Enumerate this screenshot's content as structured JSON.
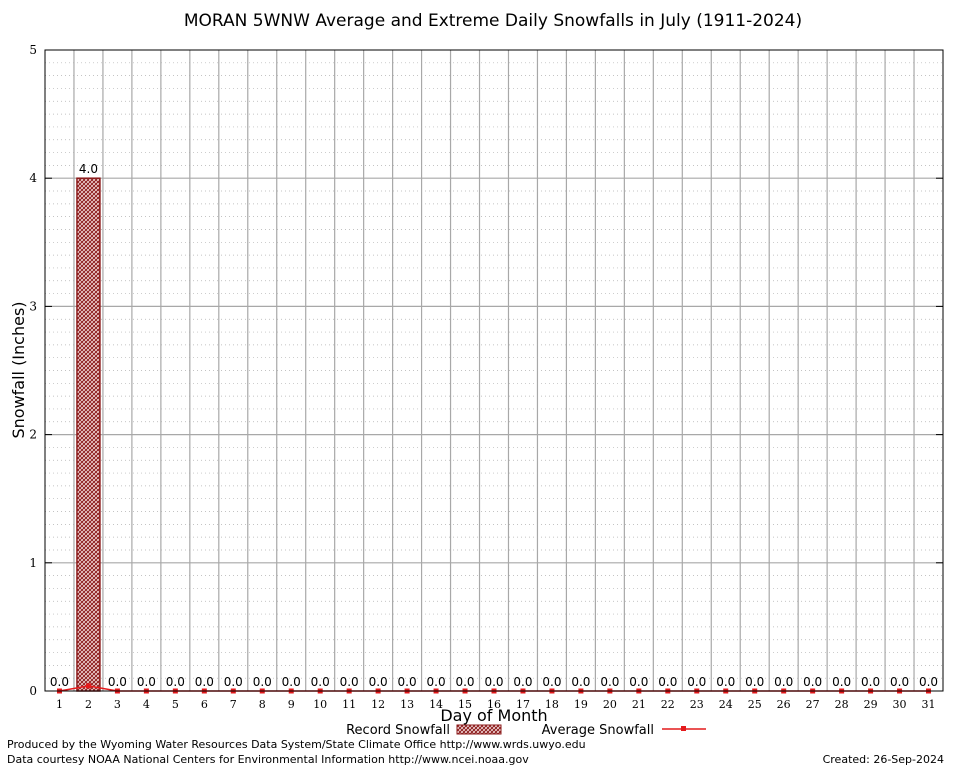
{
  "chart_data": {
    "type": "bar",
    "title": "MORAN 5WNW Average and Extreme Daily Snowfalls in July (1911-2024)",
    "xlabel": "Day of Month",
    "ylabel": "Snowfall (Inches)",
    "ylim": [
      0,
      5
    ],
    "yticks": [
      "0",
      "1",
      "2",
      "3",
      "4",
      "5"
    ],
    "grid": true,
    "categories": [
      "1",
      "2",
      "3",
      "4",
      "5",
      "6",
      "7",
      "8",
      "9",
      "10",
      "11",
      "12",
      "13",
      "14",
      "15",
      "16",
      "17",
      "18",
      "19",
      "20",
      "21",
      "22",
      "23",
      "24",
      "25",
      "26",
      "27",
      "28",
      "29",
      "30",
      "31"
    ],
    "series": [
      {
        "name": "Record Snowfall",
        "kind": "bar",
        "color": "#8b1a1a",
        "values": [
          0,
          4.0,
          0,
          0,
          0,
          0,
          0,
          0,
          0,
          0,
          0,
          0,
          0,
          0,
          0,
          0,
          0,
          0,
          0,
          0,
          0,
          0,
          0,
          0,
          0,
          0,
          0,
          0,
          0,
          0,
          0
        ],
        "labels": [
          "0.0",
          "4.0",
          "0.0",
          "0.0",
          "0.0",
          "0.0",
          "0.0",
          "0.0",
          "0.0",
          "0.0",
          "0.0",
          "0.0",
          "0.0",
          "0.0",
          "0.0",
          "0.0",
          "0.0",
          "0.0",
          "0.0",
          "0.0",
          "0.0",
          "0.0",
          "0.0",
          "0.0",
          "0.0",
          "0.0",
          "0.0",
          "0.0",
          "0.0",
          "0.0",
          "0.0"
        ]
      },
      {
        "name": "Average Snowfall",
        "kind": "line",
        "color": "#e41a1c",
        "values": [
          0,
          0.04,
          0,
          0,
          0,
          0,
          0,
          0,
          0,
          0,
          0,
          0,
          0,
          0,
          0,
          0,
          0,
          0,
          0,
          0,
          0,
          0,
          0,
          0,
          0,
          0,
          0,
          0,
          0,
          0,
          0
        ]
      }
    ],
    "legend": {
      "placement": "bottom",
      "record_label": "Record Snowfall",
      "average_label": "Average Snowfall"
    }
  },
  "footer": {
    "credit_line1": "Produced by the Wyoming Water Resources Data System/State Climate Office http://www.wrds.uwyo.edu",
    "credit_line2": "Data courtesy NOAA National Centers for Environmental Information http://www.ncei.noaa.gov",
    "created": "Created:  26-Sep-2024"
  }
}
